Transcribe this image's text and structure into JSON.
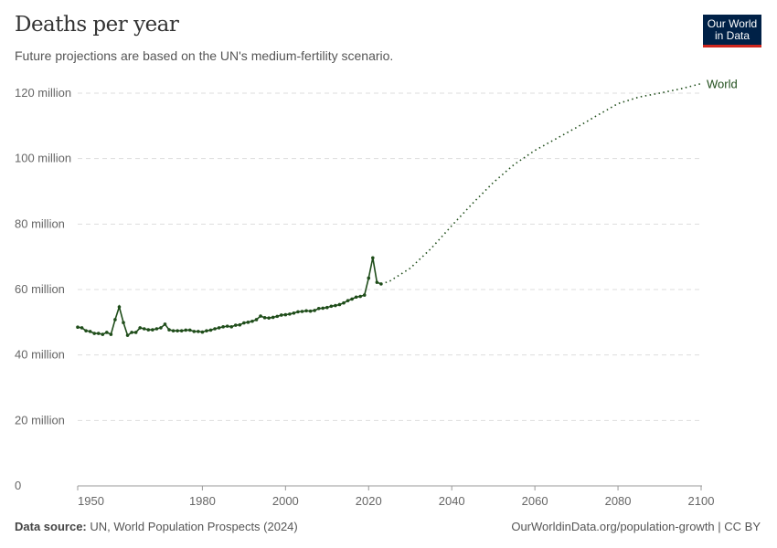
{
  "header": {
    "title": "Deaths per year",
    "subtitle": "Future projections are based on the UN's medium-fertility scenario.",
    "logo": "Our World in Data"
  },
  "footer": {
    "source_label": "Data source:",
    "source": "UN, World Population Prospects (2024)",
    "link": "OurWorldinData.org/population-growth | CC BY"
  },
  "chart_data": {
    "type": "line",
    "title": "Deaths per year",
    "ylim": [
      0,
      120000000
    ],
    "xlim": [
      1950,
      2100
    ],
    "y_ticks": [
      {
        "v": 0,
        "label": "0"
      },
      {
        "v": 20000000,
        "label": "20 million"
      },
      {
        "v": 40000000,
        "label": "40 million"
      },
      {
        "v": 60000000,
        "label": "60 million"
      },
      {
        "v": 80000000,
        "label": "80 million"
      },
      {
        "v": 100000000,
        "label": "100 million"
      },
      {
        "v": 120000000,
        "label": "120 million"
      }
    ],
    "x_ticks": [
      "1950",
      "1980",
      "2000",
      "2020",
      "2040",
      "2060",
      "2080",
      "2100"
    ],
    "grid": "horizontal dashed",
    "color": "#1f4d1a",
    "series": [
      {
        "name": "World",
        "estimates": {
          "x": [
            1950,
            1951,
            1952,
            1953,
            1954,
            1955,
            1956,
            1957,
            1958,
            1959,
            1960,
            1961,
            1962,
            1963,
            1964,
            1965,
            1966,
            1967,
            1968,
            1969,
            1970,
            1971,
            1972,
            1973,
            1974,
            1975,
            1976,
            1977,
            1978,
            1979,
            1980,
            1981,
            1982,
            1983,
            1984,
            1985,
            1986,
            1987,
            1988,
            1989,
            1990,
            1991,
            1992,
            1993,
            1994,
            1995,
            1996,
            1997,
            1998,
            1999,
            2000,
            2001,
            2002,
            2003,
            2004,
            2005,
            2006,
            2007,
            2008,
            2009,
            2010,
            2011,
            2012,
            2013,
            2014,
            2015,
            2016,
            2017,
            2018,
            2019,
            2020,
            2021,
            2022,
            2023
          ],
          "y": [
            48.5,
            48.3,
            47.4,
            47.2,
            46.6,
            46.6,
            46.3,
            46.9,
            46.3,
            50.8,
            54.7,
            49.9,
            46.0,
            46.9,
            46.9,
            48.3,
            48.0,
            47.7,
            47.7,
            48.0,
            48.3,
            49.4,
            47.7,
            47.4,
            47.4,
            47.4,
            47.6,
            47.6,
            47.2,
            47.2,
            47.0,
            47.4,
            47.6,
            48.0,
            48.3,
            48.6,
            48.8,
            48.6,
            49.1,
            49.2,
            49.8,
            50.0,
            50.3,
            50.8,
            51.9,
            51.4,
            51.3,
            51.5,
            51.8,
            52.2,
            52.3,
            52.5,
            52.8,
            53.2,
            53.3,
            53.5,
            53.4,
            53.6,
            54.2,
            54.3,
            54.5,
            54.9,
            55.1,
            55.4,
            55.9,
            56.6,
            57.1,
            57.7,
            57.9,
            58.3,
            63.5,
            69.7,
            62.2,
            61.7
          ]
        },
        "projection": {
          "x": [
            2023,
            2025,
            2030,
            2035,
            2040,
            2045,
            2050,
            2055,
            2060,
            2065,
            2070,
            2075,
            2080,
            2085,
            2090,
            2095,
            2100
          ],
          "y": [
            61.7,
            62.5,
            66.5,
            72.5,
            79.5,
            86.3,
            92.7,
            98.2,
            102.5,
            106,
            109.5,
            113.2,
            116.8,
            118.8,
            120,
            121.3,
            122.9
          ]
        }
      }
    ],
    "y_unit": "million"
  }
}
